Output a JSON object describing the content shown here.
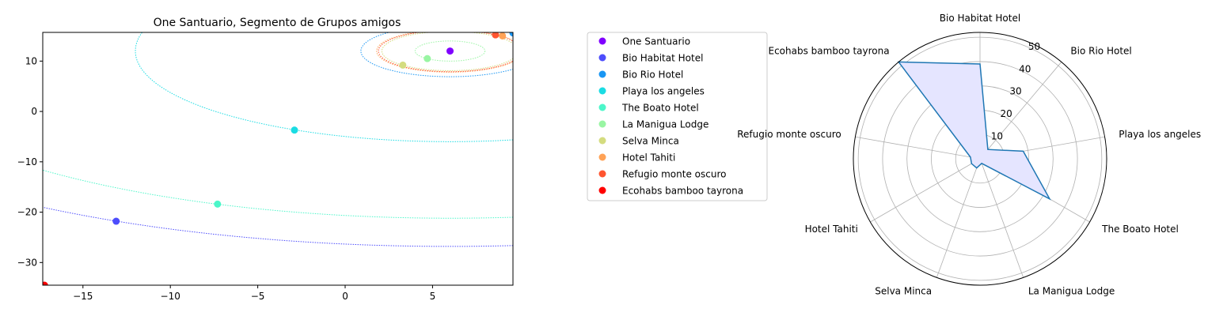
{
  "chart_data": [
    {
      "type": "scatter",
      "title": "One Santuario, Segmento de Grupos amigos",
      "xlabel": "",
      "ylabel": "",
      "xlim": [
        -17.3,
        9.6
      ],
      "ylim": [
        -34.5,
        15.7
      ],
      "xticks": [
        -15,
        -10,
        -5,
        0,
        5
      ],
      "yticks": [
        -30,
        -20,
        -10,
        0,
        10
      ],
      "grid": false,
      "center": [
        6,
        12
      ],
      "series": [
        {
          "name": "One Santuario",
          "x": 6.0,
          "y": 12.0,
          "color": "#8000ff",
          "orbit_r": 0
        },
        {
          "name": "Bio Habitat Hotel",
          "x": -13.1,
          "y": -21.8,
          "color": "#4d4dfc",
          "orbit_r": 38.8
        },
        {
          "name": "Bio Rio Hotel",
          "x": 9.6,
          "y": 15.6,
          "color": "#1996f3",
          "orbit_r": 5.1
        },
        {
          "name": "Playa los angeles",
          "x": -2.9,
          "y": -3.7,
          "color": "#1adce3",
          "orbit_r": 18.0
        },
        {
          "name": "The Boato Hotel",
          "x": -7.3,
          "y": -18.4,
          "color": "#4cf6c9",
          "orbit_r": 33.2
        },
        {
          "name": "La Manigua Lodge",
          "x": 4.7,
          "y": 10.5,
          "color": "#99f5a3",
          "orbit_r": 2.0
        },
        {
          "name": "Selva Minca",
          "x": 3.3,
          "y": 9.2,
          "color": "#d4dc7f",
          "orbit_r": 3.9
        },
        {
          "name": "Hotel Tahiti",
          "x": 9.0,
          "y": 15.0,
          "color": "#ffa256",
          "orbit_r": 4.2
        },
        {
          "name": "Refugio monte oscuro",
          "x": 8.6,
          "y": 15.2,
          "color": "#ff5530",
          "orbit_r": 4.1
        },
        {
          "name": "Ecohabs bamboo tayrona",
          "x": -17.2,
          "y": -34.5,
          "color": "#ff0000",
          "orbit_r": 51.9
        }
      ]
    },
    {
      "type": "radar",
      "categories": [
        "Bio Habitat Hotel",
        "Bio Rio Hotel",
        "Playa los angeles",
        "The Boato Hotel",
        "La Manigua Lodge",
        "Selva Minca",
        "Hotel Tahiti",
        "Refugio monte oscuro",
        "Ecohabs bamboo tayrona"
      ],
      "values": [
        39,
        5,
        18,
        33,
        2,
        4,
        4,
        4,
        52
      ],
      "rlim": [
        0,
        52
      ],
      "rticks": [
        10,
        20,
        30,
        40,
        50
      ],
      "grid": true,
      "line_color": "#1f77b4",
      "fill_color": "#e5e5ff"
    }
  ]
}
